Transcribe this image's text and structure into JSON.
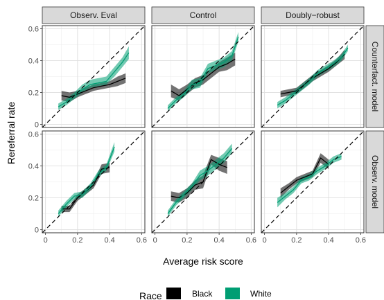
{
  "chart_data": {
    "type": "line",
    "subtype": "faceted line with confidence ribbons",
    "xlabel": "Average risk score",
    "ylabel": "Rereferral rate",
    "xlim": [
      -0.02,
      0.62
    ],
    "ylim": [
      -0.02,
      0.62
    ],
    "x_ticks": [
      0,
      0.2,
      0.4,
      0.6
    ],
    "x_tick_labels": [
      "0",
      "0.2",
      "0.4",
      "0.6"
    ],
    "y_ticks": [
      0,
      0.2,
      0.4,
      0.6
    ],
    "y_tick_labels": [
      "0",
      "0.2",
      "0.4",
      "0.6"
    ],
    "diagonal_reference": "y = x (dashed)",
    "grid": true,
    "column_facets": [
      "Observ. Eval",
      "Control",
      "Doubly−robust"
    ],
    "row_facets": [
      "Counterfact. model",
      "Observ. model"
    ],
    "legend": {
      "title": "Race",
      "placement": "bottom",
      "entries": [
        {
          "name": "Black",
          "color": "#000000"
        },
        {
          "name": "White",
          "color": "#009e73"
        }
      ]
    },
    "panels": [
      {
        "row": "Counterfact. model",
        "col": "Observ. Eval",
        "series": [
          {
            "name": "Black",
            "x": [
              0.1,
              0.15,
              0.2,
              0.25,
              0.3,
              0.35,
              0.4,
              0.45,
              0.5
            ],
            "y": [
              0.18,
              0.17,
              0.19,
              0.21,
              0.23,
              0.24,
              0.25,
              0.27,
              0.29
            ],
            "lo": [
              0.15,
              0.14,
              0.17,
              0.19,
              0.21,
              0.22,
              0.23,
              0.24,
              0.26
            ],
            "hi": [
              0.21,
              0.2,
              0.21,
              0.23,
              0.25,
              0.26,
              0.27,
              0.3,
              0.32
            ]
          },
          {
            "name": "White",
            "x": [
              0.08,
              0.13,
              0.18,
              0.23,
              0.28,
              0.33,
              0.38,
              0.43,
              0.48,
              0.52
            ],
            "y": [
              0.11,
              0.14,
              0.18,
              0.22,
              0.25,
              0.26,
              0.27,
              0.33,
              0.39,
              0.45
            ],
            "lo": [
              0.09,
              0.12,
              0.16,
              0.2,
              0.23,
              0.24,
              0.25,
              0.3,
              0.36,
              0.41
            ],
            "hi": [
              0.13,
              0.16,
              0.2,
              0.25,
              0.28,
              0.29,
              0.3,
              0.36,
              0.42,
              0.49
            ]
          }
        ]
      },
      {
        "row": "Counterfact. model",
        "col": "Control",
        "series": [
          {
            "name": "Black",
            "x": [
              0.1,
              0.15,
              0.2,
              0.25,
              0.3,
              0.35,
              0.4,
              0.45,
              0.5
            ],
            "y": [
              0.21,
              0.18,
              0.22,
              0.26,
              0.28,
              0.32,
              0.36,
              0.38,
              0.41
            ],
            "lo": [
              0.17,
              0.15,
              0.19,
              0.23,
              0.25,
              0.29,
              0.33,
              0.34,
              0.37
            ],
            "hi": [
              0.25,
              0.22,
              0.25,
              0.29,
              0.31,
              0.35,
              0.39,
              0.42,
              0.45
            ]
          },
          {
            "name": "White",
            "x": [
              0.08,
              0.13,
              0.18,
              0.23,
              0.28,
              0.33,
              0.38,
              0.43,
              0.48,
              0.52
            ],
            "y": [
              0.1,
              0.15,
              0.19,
              0.25,
              0.26,
              0.35,
              0.37,
              0.39,
              0.43,
              0.55
            ],
            "lo": [
              0.08,
              0.13,
              0.17,
              0.22,
              0.23,
              0.32,
              0.34,
              0.36,
              0.4,
              0.52
            ],
            "hi": [
              0.12,
              0.17,
              0.21,
              0.28,
              0.29,
              0.38,
              0.4,
              0.42,
              0.46,
              0.58
            ]
          }
        ]
      },
      {
        "row": "Counterfact. model",
        "col": "Doubly−robust",
        "series": [
          {
            "name": "Black",
            "x": [
              0.1,
              0.15,
              0.2,
              0.25,
              0.3,
              0.35,
              0.4,
              0.45,
              0.5
            ],
            "y": [
              0.19,
              0.2,
              0.21,
              0.25,
              0.29,
              0.32,
              0.35,
              0.39,
              0.44
            ],
            "lo": [
              0.17,
              0.18,
              0.19,
              0.23,
              0.27,
              0.3,
              0.33,
              0.37,
              0.41
            ],
            "hi": [
              0.21,
              0.22,
              0.23,
              0.27,
              0.31,
              0.34,
              0.37,
              0.41,
              0.47
            ]
          },
          {
            "name": "White",
            "x": [
              0.08,
              0.13,
              0.18,
              0.23,
              0.28,
              0.33,
              0.38,
              0.43,
              0.48,
              0.52
            ],
            "y": [
              0.12,
              0.15,
              0.19,
              0.23,
              0.27,
              0.32,
              0.35,
              0.38,
              0.42,
              0.48
            ],
            "lo": [
              0.1,
              0.13,
              0.17,
              0.21,
              0.25,
              0.3,
              0.33,
              0.36,
              0.4,
              0.46
            ],
            "hi": [
              0.14,
              0.17,
              0.21,
              0.25,
              0.29,
              0.34,
              0.37,
              0.4,
              0.44,
              0.5
            ]
          }
        ]
      },
      {
        "row": "Observ. model",
        "col": "Observ. Eval",
        "series": [
          {
            "name": "Black",
            "x": [
              0.1,
              0.15,
              0.2,
              0.25,
              0.3,
              0.35,
              0.4
            ],
            "y": [
              0.13,
              0.13,
              0.2,
              0.24,
              0.28,
              0.38,
              0.39
            ],
            "lo": [
              0.11,
              0.11,
              0.18,
              0.22,
              0.26,
              0.35,
              0.36
            ],
            "hi": [
              0.15,
              0.15,
              0.22,
              0.26,
              0.3,
              0.41,
              0.42
            ]
          },
          {
            "name": "White",
            "x": [
              0.08,
              0.13,
              0.18,
              0.23,
              0.28,
              0.33,
              0.38,
              0.43
            ],
            "y": [
              0.1,
              0.16,
              0.21,
              0.22,
              0.27,
              0.35,
              0.39,
              0.52
            ],
            "lo": [
              0.08,
              0.14,
              0.19,
              0.2,
              0.25,
              0.33,
              0.37,
              0.49
            ],
            "hi": [
              0.12,
              0.18,
              0.23,
              0.24,
              0.29,
              0.37,
              0.41,
              0.55
            ]
          }
        ]
      },
      {
        "row": "Observ. model",
        "col": "Control",
        "series": [
          {
            "name": "Black",
            "x": [
              0.1,
              0.15,
              0.2,
              0.25,
              0.3,
              0.35,
              0.4,
              0.45
            ],
            "y": [
              0.21,
              0.2,
              0.23,
              0.28,
              0.3,
              0.44,
              0.41,
              0.39
            ],
            "lo": [
              0.18,
              0.17,
              0.2,
              0.25,
              0.26,
              0.41,
              0.37,
              0.35
            ],
            "hi": [
              0.24,
              0.23,
              0.26,
              0.31,
              0.34,
              0.47,
              0.45,
              0.43
            ]
          },
          {
            "name": "White",
            "x": [
              0.08,
              0.13,
              0.18,
              0.23,
              0.28,
              0.33,
              0.38,
              0.43,
              0.48
            ],
            "y": [
              0.1,
              0.17,
              0.22,
              0.27,
              0.34,
              0.37,
              0.41,
              0.45,
              0.51
            ],
            "lo": [
              0.08,
              0.15,
              0.2,
              0.25,
              0.31,
              0.34,
              0.38,
              0.42,
              0.48
            ],
            "hi": [
              0.12,
              0.19,
              0.24,
              0.29,
              0.37,
              0.4,
              0.44,
              0.48,
              0.54
            ]
          }
        ]
      },
      {
        "row": "Observ. model",
        "col": "Doubly−robust",
        "series": [
          {
            "name": "Black",
            "x": [
              0.1,
              0.15,
              0.2,
              0.25,
              0.3,
              0.35,
              0.4
            ],
            "y": [
              0.23,
              0.27,
              0.31,
              0.33,
              0.35,
              0.45,
              0.41
            ],
            "lo": [
              0.2,
              0.25,
              0.29,
              0.31,
              0.33,
              0.42,
              0.38
            ],
            "hi": [
              0.26,
              0.29,
              0.33,
              0.35,
              0.37,
              0.48,
              0.44
            ]
          },
          {
            "name": "White",
            "x": [
              0.08,
              0.13,
              0.18,
              0.23,
              0.28,
              0.33,
              0.38,
              0.43,
              0.48
            ],
            "y": [
              0.17,
              0.21,
              0.25,
              0.31,
              0.33,
              0.37,
              0.4,
              0.44,
              0.46
            ],
            "lo": [
              0.14,
              0.19,
              0.23,
              0.29,
              0.31,
              0.35,
              0.38,
              0.42,
              0.44
            ],
            "hi": [
              0.2,
              0.23,
              0.27,
              0.33,
              0.35,
              0.39,
              0.42,
              0.46,
              0.48
            ]
          }
        ]
      }
    ]
  }
}
